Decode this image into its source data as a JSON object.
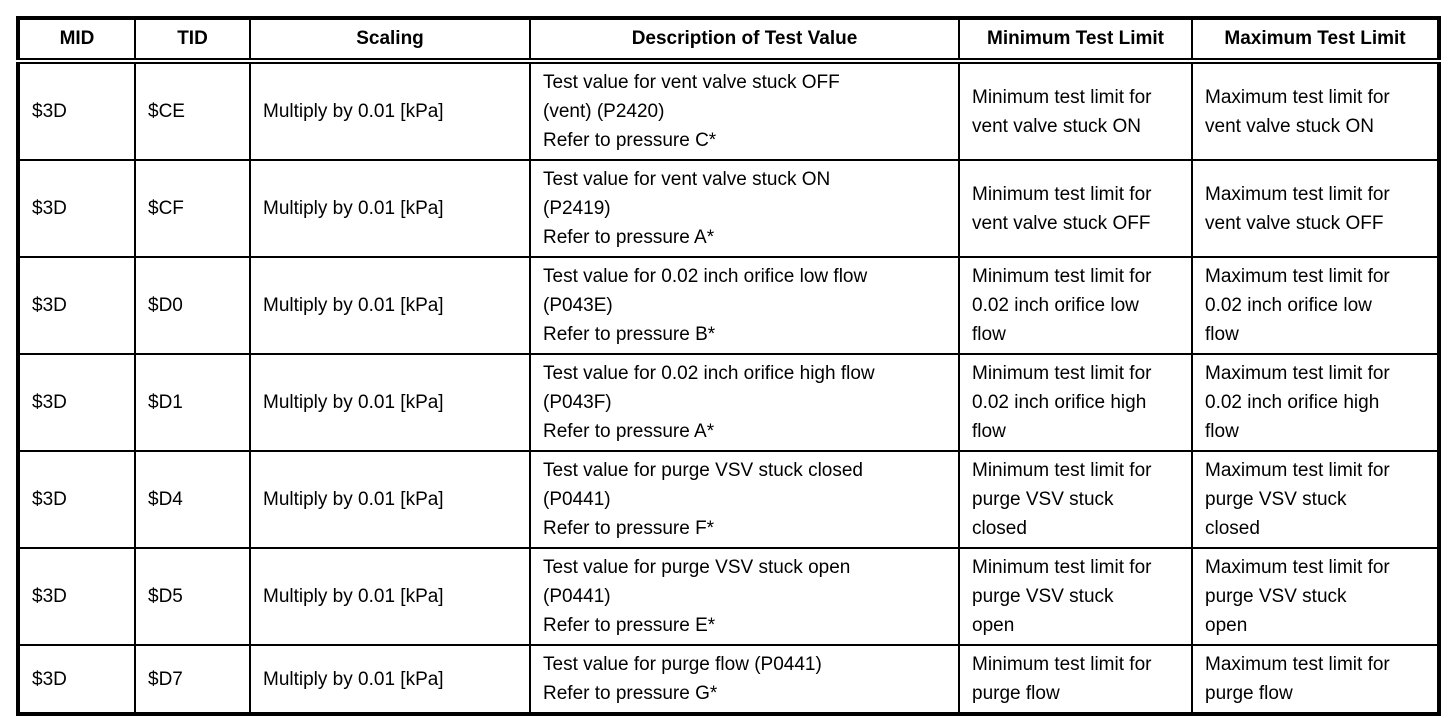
{
  "table": {
    "headers": {
      "mid": "MID",
      "tid": "TID",
      "scaling": "Scaling",
      "description": "Description of Test Value",
      "min_limit": "Minimum Test Limit",
      "max_limit": "Maximum Test Limit"
    },
    "rows": [
      {
        "mid": "$3D",
        "tid": "$CE",
        "scaling": "Multiply by 0.01 [kPa]",
        "description": "Test value for vent valve stuck OFF\n(vent) (P2420)\nRefer to pressure C*",
        "min_limit": "Minimum test limit for\nvent valve stuck ON",
        "max_limit": "Maximum test limit for\nvent valve stuck ON"
      },
      {
        "mid": "$3D",
        "tid": "$CF",
        "scaling": "Multiply by 0.01 [kPa]",
        "description": "Test value for vent valve stuck ON\n(P2419)\nRefer to pressure A*",
        "min_limit": "Minimum test limit for\nvent valve stuck OFF",
        "max_limit": "Maximum test limit for\nvent valve stuck OFF"
      },
      {
        "mid": "$3D",
        "tid": "$D0",
        "scaling": "Multiply by 0.01 [kPa]",
        "description": "Test value for 0.02 inch orifice low flow\n(P043E)\nRefer to pressure B*",
        "min_limit": "Minimum test limit for\n0.02 inch orifice low\nflow",
        "max_limit": "Maximum test limit for\n0.02 inch orifice low\nflow"
      },
      {
        "mid": "$3D",
        "tid": "$D1",
        "scaling": "Multiply by 0.01 [kPa]",
        "description": "Test value for 0.02 inch orifice high flow\n(P043F)\nRefer to pressure A*",
        "min_limit": "Minimum test limit for\n0.02 inch orifice high\nflow",
        "max_limit": "Maximum test limit for\n0.02 inch orifice high\nflow"
      },
      {
        "mid": "$3D",
        "tid": "$D4",
        "scaling": "Multiply by 0.01 [kPa]",
        "description": "Test value for purge VSV stuck closed\n(P0441)\nRefer to pressure F*",
        "min_limit": "Minimum test limit for\npurge VSV stuck\nclosed",
        "max_limit": "Maximum test limit for\npurge VSV stuck\nclosed"
      },
      {
        "mid": "$3D",
        "tid": "$D5",
        "scaling": "Multiply by 0.01 [kPa]",
        "description": "Test value for purge VSV stuck open\n(P0441)\nRefer to pressure E*",
        "min_limit": "Minimum test limit for\npurge VSV stuck\nopen",
        "max_limit": "Maximum test limit for\npurge VSV stuck\nopen"
      },
      {
        "mid": "$3D",
        "tid": "$D7",
        "scaling": "Multiply by 0.01 [kPa]",
        "description": "Test value for purge flow (P0441)\nRefer to pressure G*",
        "min_limit": "Minimum test limit for\npurge flow",
        "max_limit": "Maximum test limit for\npurge flow"
      }
    ]
  }
}
